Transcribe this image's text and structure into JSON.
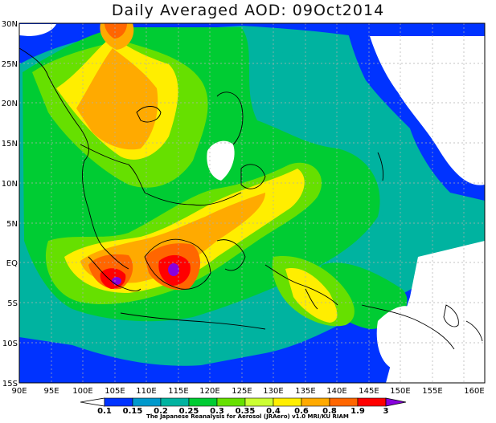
{
  "title": "Daily Averaged AOD: 09Oct2014",
  "lat_labels": [
    "30N",
    "25N",
    "20N",
    "15N",
    "10N",
    "5N",
    "EQ",
    "5S",
    "10S",
    "15S"
  ],
  "lon_labels": [
    "90E",
    "95E",
    "100E",
    "105E",
    "110E",
    "115E",
    "120E",
    "125E",
    "130E",
    "135E",
    "140E",
    "145E",
    "150E",
    "155E",
    "160E"
  ],
  "colorbar": {
    "ticks": [
      "0.1",
      "0.15",
      "0.2",
      "0.25",
      "0.3",
      "0.35",
      "0.4",
      "0.6",
      "0.8",
      "1.9",
      "3"
    ],
    "colors": [
      "#0033ff",
      "#0099cc",
      "#00b3a0",
      "#00cc33",
      "#66e000",
      "#ccff33",
      "#ffee00",
      "#ffaa00",
      "#ff6600",
      "#ff0000",
      "#8800dd"
    ]
  },
  "credit": "The Japanese Reanalysis for Aerosol (JRAero) v1.0 MRI/KU RIAM"
}
